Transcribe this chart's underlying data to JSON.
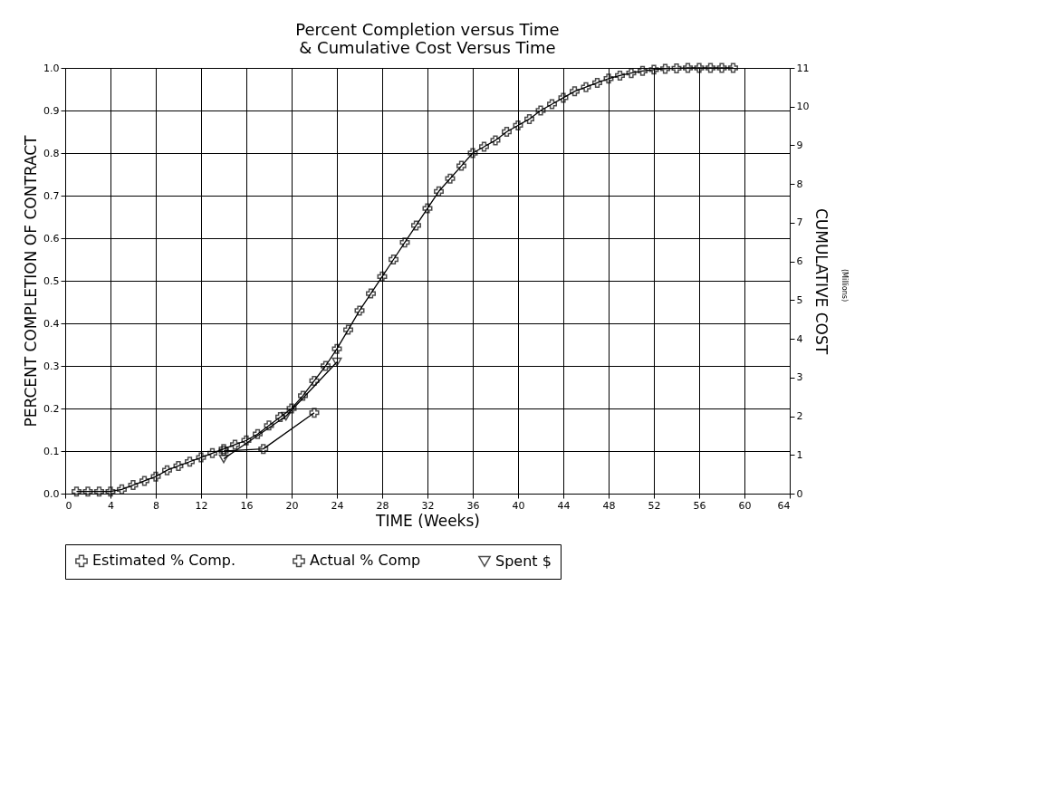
{
  "chart_data": {
    "type": "line",
    "title": [
      "Percent Completion versus Time",
      "& Cumulative Cost Versus Time"
    ],
    "xlabel": "TIME (Weeks)",
    "ylabel": "PERCENT COMPLETION OF CONTRACT",
    "y2label": "CUMULATIVE COST",
    "annotations": [
      "(Millions)"
    ],
    "xlim": [
      0,
      64
    ],
    "xticks": [
      0,
      4,
      8,
      12,
      16,
      20,
      24,
      28,
      32,
      36,
      40,
      44,
      48,
      52,
      56,
      60,
      64
    ],
    "ylim": [
      0,
      1
    ],
    "yticks": [
      {
        "value": 0,
        "label": "0.0"
      },
      0.1,
      0.2,
      0.3,
      0.4,
      0.5,
      0.6,
      0.7,
      0.8,
      0.9,
      {
        "value": 1,
        "label": "1.0"
      }
    ],
    "y2lim": [
      0,
      11
    ],
    "y2ticks": [
      0,
      1,
      2,
      3,
      4,
      5,
      6,
      7,
      8,
      9,
      10,
      11
    ],
    "grid": true,
    "legend": "bottom",
    "series": [
      {
        "name": "Estimated % Comp.",
        "color": "#000000",
        "marker": "cross",
        "x": [
          1,
          2,
          3,
          4,
          5,
          6,
          7,
          8,
          9,
          10,
          11,
          12,
          13,
          14,
          15,
          16,
          17,
          18,
          19,
          20,
          21,
          22,
          23,
          24,
          25,
          26,
          27,
          28,
          29,
          30,
          31,
          32,
          33,
          34,
          35,
          36,
          37,
          38,
          39,
          40,
          41,
          42,
          43,
          44,
          45,
          46,
          47,
          48,
          49,
          50,
          51,
          52,
          53,
          54,
          55,
          56,
          57,
          58,
          59
        ],
        "values": [
          0.005,
          0.005,
          0.005,
          0.005,
          0.01,
          0.02,
          0.03,
          0.04,
          0.055,
          0.065,
          0.075,
          0.085,
          0.095,
          0.105,
          0.115,
          0.125,
          0.14,
          0.16,
          0.18,
          0.2,
          0.23,
          0.265,
          0.3,
          0.34,
          0.385,
          0.43,
          0.47,
          0.51,
          0.55,
          0.59,
          0.63,
          0.67,
          0.71,
          0.74,
          0.77,
          0.8,
          0.815,
          0.83,
          0.85,
          0.865,
          0.88,
          0.9,
          0.915,
          0.93,
          0.945,
          0.955,
          0.965,
          0.975,
          0.982,
          0.988,
          0.993,
          0.996,
          0.998,
          0.999,
          1.0,
          1.0,
          1.0,
          1.0,
          1.0
        ]
      },
      {
        "name": "Actual % Comp",
        "color": "#000000",
        "marker": "cross",
        "x": [
          14,
          17.5,
          22
        ],
        "values": [
          0.1,
          0.105,
          0.19
        ]
      },
      {
        "name": "Spent $",
        "color": "#000000",
        "marker": "triangle",
        "axis": "y2",
        "x": [
          14,
          19.5,
          24
        ],
        "values": [
          0.9,
          2.0,
          3.4
        ]
      }
    ]
  }
}
